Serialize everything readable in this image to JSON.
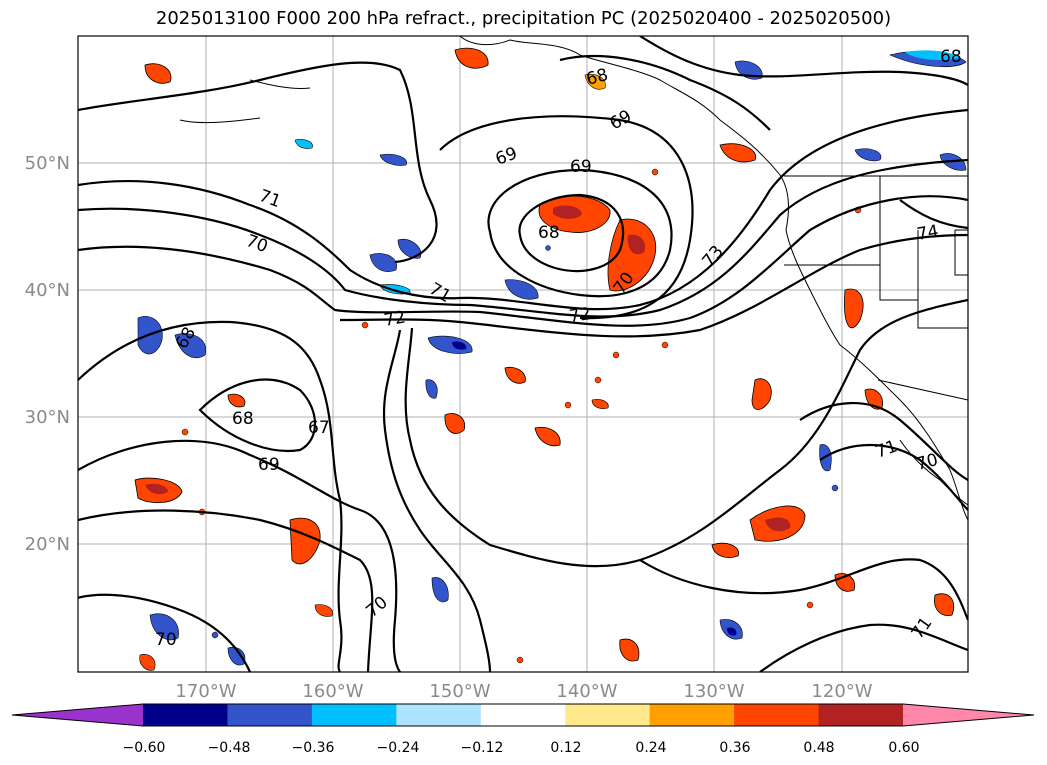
{
  "title": "2025013100 F000 200 hPa refract., precipitation PC (2025020400 - 2025020500)",
  "map": {
    "lat_labels": [
      "50°N",
      "40°N",
      "30°N",
      "20°N"
    ],
    "lon_labels": [
      "170°W",
      "160°W",
      "150°W",
      "140°W",
      "130°W",
      "120°W"
    ],
    "lat_range": [
      10,
      60
    ],
    "lon_range": [
      -180,
      -110
    ],
    "contour_labels": [
      "71",
      "70",
      "69",
      "68",
      "67",
      "72",
      "73",
      "74"
    ],
    "contour_label_instances": [
      "71",
      "70",
      "69",
      "68",
      "67",
      "69",
      "68",
      "72",
      "71",
      "72",
      "69",
      "69",
      "68",
      "68",
      "70",
      "73",
      "74",
      "71",
      "70",
      "71",
      "70",
      "70",
      "68"
    ]
  },
  "colorbar": {
    "ticks": [
      "−0.60",
      "−0.48",
      "−0.36",
      "−0.24",
      "−0.12",
      "0.12",
      "0.24",
      "0.36",
      "0.48",
      "0.60"
    ],
    "colors": [
      "#9933cc",
      "#00008b",
      "#3355cc",
      "#00bfff",
      "#aee3ff",
      "#ffffff",
      "#ffe98a",
      "#ffa000",
      "#ff4500",
      "#b22222",
      "#ff88aa"
    ],
    "extend": "both"
  }
}
